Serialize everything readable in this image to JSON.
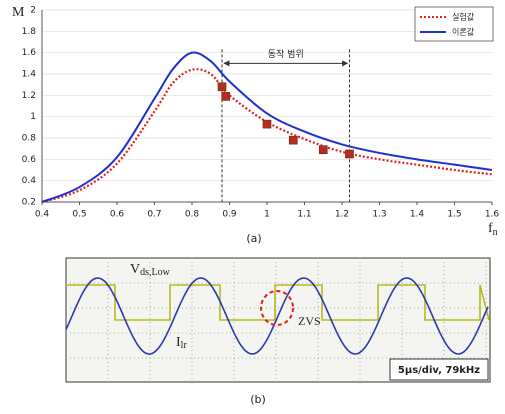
{
  "chart_data": {
    "type": "line",
    "y_label": "M",
    "x_label": {
      "main": "f",
      "sub": "n"
    },
    "xlim": [
      0.4,
      1.6
    ],
    "xticks": [
      0.4,
      0.5,
      0.6,
      0.7,
      0.8,
      0.9,
      1,
      1.1,
      1.2,
      1.3,
      1.4,
      1.5,
      1.6
    ],
    "ylim": [
      0.2,
      2
    ],
    "yticks": [
      0.2,
      0.4,
      0.6,
      0.8,
      1,
      1.2,
      1.4,
      1.6,
      1.8,
      2
    ],
    "grid": true,
    "legend": "upper right",
    "series": [
      {
        "name": "실험값",
        "color": "#e02020",
        "style": "dotted",
        "x": [
          0.4,
          0.5,
          0.6,
          0.7,
          0.75,
          0.8,
          0.85,
          0.9,
          1,
          1.1,
          1.2,
          1.3,
          1.4,
          1.5,
          1.6
        ],
        "values": [
          0.2,
          0.31,
          0.56,
          1.05,
          1.32,
          1.44,
          1.4,
          1.2,
          0.95,
          0.79,
          0.67,
          0.6,
          0.55,
          0.5,
          0.46
        ]
      },
      {
        "name": "이론값",
        "color": "#1f2fd0",
        "style": "solid",
        "x": [
          0.4,
          0.5,
          0.6,
          0.7,
          0.75,
          0.8,
          0.85,
          0.9,
          1,
          1.1,
          1.2,
          1.3,
          1.4,
          1.5,
          1.6
        ],
        "values": [
          0.2,
          0.34,
          0.62,
          1.17,
          1.45,
          1.6,
          1.52,
          1.33,
          1.03,
          0.86,
          0.74,
          0.66,
          0.6,
          0.55,
          0.5
        ]
      }
    ],
    "points": {
      "color": "#b03020",
      "x": [
        0.88,
        0.89,
        1,
        1.07,
        1.15,
        1.22
      ],
      "values": [
        1.28,
        1.19,
        0.93,
        0.78,
        0.69,
        0.65
      ]
    },
    "annotation": {
      "text": "동작 범위",
      "x": [
        0.88,
        1.22
      ],
      "y": 1.5
    },
    "caption": "(a)"
  },
  "scope": {
    "voltage_label": {
      "main": "V",
      "sub": "ds,Low"
    },
    "current_label": {
      "main": "I",
      "sub": "lr"
    },
    "zvs": "ZVS",
    "setting": "5μs/div, 79kHz",
    "caption": "(b)"
  }
}
